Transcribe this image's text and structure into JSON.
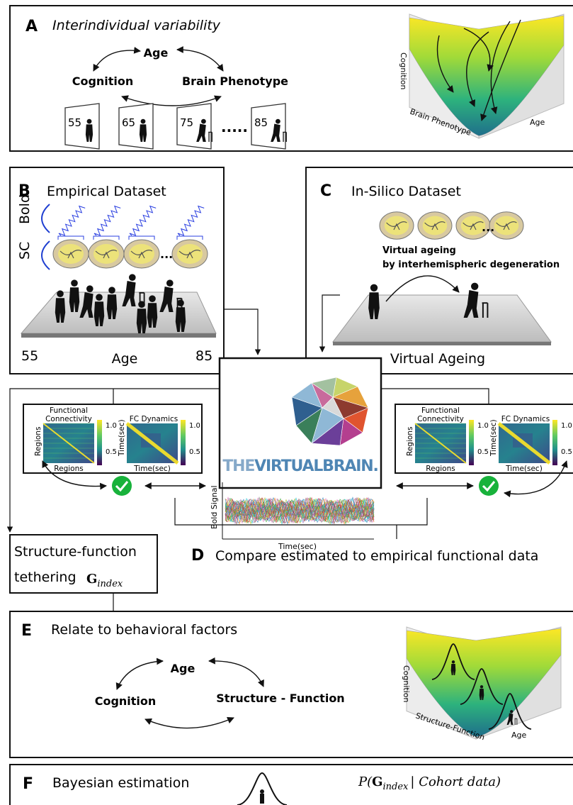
{
  "panel_a": {
    "letter": "A",
    "title": "Interindividual variability",
    "nodes": [
      "Age",
      "Cognition",
      "Brain Phenotype"
    ],
    "ages": [
      "55",
      "65",
      "75",
      "85"
    ],
    "surface_axes": {
      "z": "Cognition",
      "x": "Brain Phenotype",
      "y": "Age"
    }
  },
  "panel_b": {
    "letter": "B",
    "title": "Empirical Dataset",
    "rows": [
      "Bold",
      "SC"
    ],
    "axis": {
      "start": "55",
      "label": "Age",
      "end": "85"
    }
  },
  "panel_c": {
    "letter": "C",
    "title": "In-Silico Dataset",
    "caption": [
      "Virtual ageing",
      "by interhemispheric degeneration"
    ],
    "axis_label": "Virtual Ageing"
  },
  "logo": {
    "prefix": "THE",
    "name": "VIRTUALBRAIN."
  },
  "fc_panels": [
    {
      "fc_title": [
        "Functional",
        "Connectivity"
      ],
      "fc_xlabel": "Regions",
      "fc_ylabel": "Regions",
      "fc_colorbar": [
        "1.0",
        "0.5"
      ],
      "fcd_title": "FC Dynamics",
      "fcd_xlabel": "Time(sec)",
      "fcd_ylabel": "Time(sec)",
      "fcd_colorbar": [
        "1.0",
        "0.5"
      ]
    },
    {
      "fc_title": [
        "Functional",
        "Connectivity"
      ],
      "fc_xlabel": "Regions",
      "fc_ylabel": "Regions",
      "fc_colorbar": [
        "1.0",
        "0.5"
      ],
      "fcd_title": "FC Dynamics",
      "fcd_xlabel": "Time(sec)",
      "fcd_ylabel": "Time(sec)",
      "fcd_colorbar": [
        "1.0",
        "0.5"
      ]
    }
  ],
  "bold_plot": {
    "ylabel": "Bold Signal",
    "xlabel": "Time(sec)"
  },
  "tethering": {
    "lines": [
      "Structure-function",
      "tethering"
    ],
    "symbol": "G",
    "subscript": "index"
  },
  "panel_d": {
    "letter": "D",
    "title": "Compare estimated to empirical functional data"
  },
  "panel_e": {
    "letter": "E",
    "title": "Relate to behavioral factors",
    "nodes": [
      "Age",
      "Cognition",
      "Structure - Function"
    ],
    "surface_axes": {
      "z": "Cognition",
      "x": "Structure-Function",
      "y": "Age"
    }
  },
  "panel_f": {
    "letter": "F",
    "title": "Bayesian estimation",
    "formula": {
      "prefix": "P(",
      "symbol": "G",
      "subscript": "index",
      "suffix": "| Cohort data)"
    }
  }
}
